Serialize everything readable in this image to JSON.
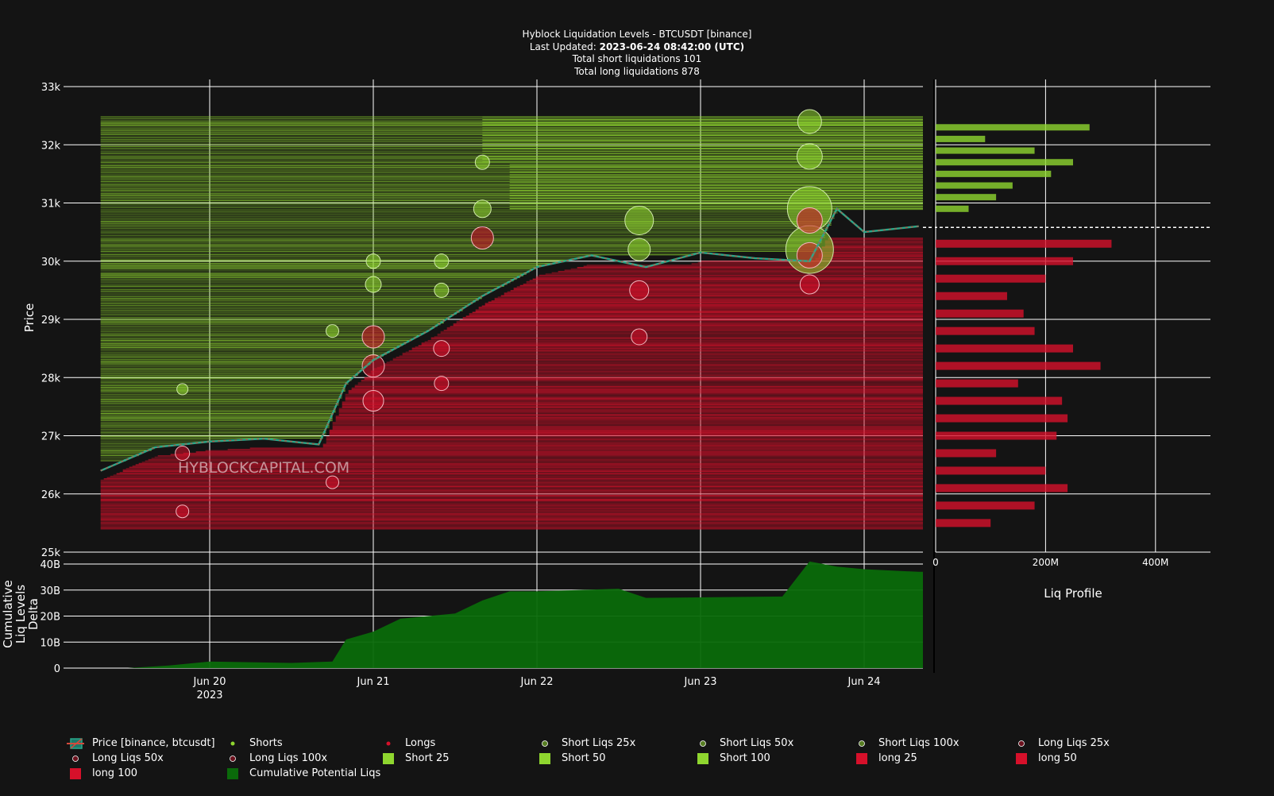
{
  "header": {
    "title": "Hyblock Liquidation Levels - BTCUSDT [binance]",
    "updated_prefix": "Last Updated: ",
    "updated_value": "2023-06-24 08:42:00 (UTC)",
    "shorts_line": "Total short liquidations 101",
    "longs_line": "Total long liquidations 878"
  },
  "watermark": "HYBLOCKCAPITAL.COM",
  "colors": {
    "background": "#141414",
    "short": "#8fd62f",
    "long": "#d6102a",
    "cumulative": "#0a6a0a",
    "price_up": "#2aa889",
    "price_down": "#d34a3c"
  },
  "chart_data": [
    {
      "type": "scatter",
      "panel": "main",
      "ylabel": "Price",
      "ylim": [
        25000,
        33000
      ],
      "yticks": [
        "25k",
        "26k",
        "27k",
        "28k",
        "29k",
        "30k",
        "31k",
        "32k",
        "33k"
      ],
      "xticks": [
        "Jun 20",
        "Jun 21",
        "Jun 22",
        "Jun 23",
        "Jun 24"
      ],
      "xtick_sub": "2023",
      "current_price": 30580,
      "price_series": {
        "name": "Price [binance, btcusdt]",
        "x": [
          "2023-06-19 08:00",
          "2023-06-19 16:00",
          "2023-06-20 00:00",
          "2023-06-20 08:00",
          "2023-06-20 16:00",
          "2023-06-20 20:00",
          "2023-06-21 00:00",
          "2023-06-21 08:00",
          "2023-06-21 16:00",
          "2023-06-22 00:00",
          "2023-06-22 08:00",
          "2023-06-22 16:00",
          "2023-06-23 00:00",
          "2023-06-23 08:00",
          "2023-06-23 16:00",
          "2023-06-23 20:00",
          "2023-06-24 00:00",
          "2023-06-24 08:00"
        ],
        "y": [
          26400,
          26800,
          26900,
          26950,
          26850,
          27900,
          28300,
          28800,
          29400,
          29900,
          30100,
          29900,
          30150,
          30050,
          30000,
          30900,
          30500,
          30600
        ]
      },
      "short_levels": {
        "name": "Short Liqs",
        "price_range": [
          25400,
          32500
        ],
        "band_center": [
          26500,
          27300,
          28100,
          29000,
          30200,
          31200,
          31800
        ]
      },
      "long_levels": {
        "name": "Long Liqs",
        "price_range": [
          25400,
          30400
        ]
      },
      "short_bubbles": [
        {
          "x": "2023-06-19 20:00",
          "y": 27800,
          "r": 7
        },
        {
          "x": "2023-06-20 18:00",
          "y": 28800,
          "r": 8
        },
        {
          "x": "2023-06-21 00:00",
          "y": 29600,
          "r": 10
        },
        {
          "x": "2023-06-21 00:00",
          "y": 30000,
          "r": 9
        },
        {
          "x": "2023-06-21 10:00",
          "y": 30000,
          "r": 9
        },
        {
          "x": "2023-06-21 10:00",
          "y": 29500,
          "r": 9
        },
        {
          "x": "2023-06-21 16:00",
          "y": 31700,
          "r": 9
        },
        {
          "x": "2023-06-21 16:00",
          "y": 30900,
          "r": 11
        },
        {
          "x": "2023-06-22 15:00",
          "y": 30700,
          "r": 18
        },
        {
          "x": "2023-06-22 15:00",
          "y": 30200,
          "r": 14
        },
        {
          "x": "2023-06-23 16:00",
          "y": 32400,
          "r": 15
        },
        {
          "x": "2023-06-23 16:00",
          "y": 31800,
          "r": 16
        },
        {
          "x": "2023-06-23 16:00",
          "y": 30900,
          "r": 28
        },
        {
          "x": "2023-06-23 16:00",
          "y": 30200,
          "r": 30
        }
      ],
      "long_bubbles": [
        {
          "x": "2023-06-19 20:00",
          "y": 26700,
          "r": 9
        },
        {
          "x": "2023-06-19 20:00",
          "y": 25700,
          "r": 8
        },
        {
          "x": "2023-06-20 18:00",
          "y": 26200,
          "r": 8
        },
        {
          "x": "2023-06-21 00:00",
          "y": 28700,
          "r": 14
        },
        {
          "x": "2023-06-21 00:00",
          "y": 28200,
          "r": 14
        },
        {
          "x": "2023-06-21 00:00",
          "y": 27600,
          "r": 13
        },
        {
          "x": "2023-06-21 10:00",
          "y": 28500,
          "r": 10
        },
        {
          "x": "2023-06-21 10:00",
          "y": 27900,
          "r": 9
        },
        {
          "x": "2023-06-21 16:00",
          "y": 30400,
          "r": 14
        },
        {
          "x": "2023-06-22 15:00",
          "y": 29500,
          "r": 12
        },
        {
          "x": "2023-06-22 15:00",
          "y": 28700,
          "r": 10
        },
        {
          "x": "2023-06-23 16:00",
          "y": 30700,
          "r": 16
        },
        {
          "x": "2023-06-23 16:00",
          "y": 30100,
          "r": 16
        },
        {
          "x": "2023-06-23 16:00",
          "y": 29600,
          "r": 12
        }
      ]
    },
    {
      "type": "area",
      "panel": "cumulative",
      "name": "Cumulative Potential Liqs",
      "ylabel": "Cumulative Liq Levels Delta",
      "ylim": [
        0,
        40
      ],
      "yticks": [
        "0",
        "10B",
        "20B",
        "30B",
        "40B"
      ],
      "x": [
        "2023-06-19 06:00",
        "2023-06-19 12:00",
        "2023-06-19 18:00",
        "2023-06-20 00:00",
        "2023-06-20 12:00",
        "2023-06-20 18:00",
        "2023-06-20 20:00",
        "2023-06-21 00:00",
        "2023-06-21 04:00",
        "2023-06-21 12:00",
        "2023-06-21 16:00",
        "2023-06-21 20:00",
        "2023-06-22 00:00",
        "2023-06-22 12:00",
        "2023-06-22 16:00",
        "2023-06-23 12:00",
        "2023-06-23 16:00",
        "2023-06-23 20:00",
        "2023-06-24 00:00",
        "2023-06-24 08:00"
      ],
      "y": [
        0,
        0,
        1,
        2.5,
        2,
        2.5,
        11,
        14,
        19,
        21,
        26,
        29.5,
        29.5,
        30.5,
        27,
        27.5,
        41,
        39,
        38,
        37
      ]
    },
    {
      "type": "bar",
      "panel": "profile",
      "title": "Liq Profile",
      "xticks": [
        "0",
        "200M",
        "400M"
      ],
      "xlim": [
        0,
        500
      ],
      "short_bars": {
        "price": [
          30900,
          31100,
          31300,
          31500,
          31700,
          31900,
          32100,
          32300
        ],
        "values": [
          60,
          110,
          140,
          210,
          250,
          180,
          90,
          280
        ]
      },
      "long_bars": {
        "price": [
          25500,
          25800,
          26100,
          26400,
          26700,
          27000,
          27300,
          27600,
          27900,
          28200,
          28500,
          28800,
          29100,
          29400,
          29700,
          30000,
          30300
        ],
        "values": [
          100,
          180,
          240,
          200,
          110,
          220,
          240,
          230,
          150,
          300,
          250,
          180,
          160,
          130,
          200,
          250,
          320
        ]
      }
    }
  ],
  "legend": [
    {
      "label": "Price [binance, btcusdt]",
      "swatch": "price"
    },
    {
      "label": "Shorts",
      "swatch": "short-dot"
    },
    {
      "label": "Longs",
      "swatch": "long-dot"
    },
    {
      "label": "Short Liqs 25x",
      "swatch": "short-ring"
    },
    {
      "label": "Short Liqs 50x",
      "swatch": "short-ring"
    },
    {
      "label": "Short Liqs 100x",
      "swatch": "short-ring"
    },
    {
      "label": "Long Liqs 25x",
      "swatch": "long-ring"
    },
    {
      "label": "Long Liqs 50x",
      "swatch": "long-ring"
    },
    {
      "label": "Long Liqs 100x",
      "swatch": "long-ring"
    },
    {
      "label": "Short 25",
      "swatch": "short-square"
    },
    {
      "label": "Short 50",
      "swatch": "short-square"
    },
    {
      "label": "Short 100",
      "swatch": "short-square"
    },
    {
      "label": "long 25",
      "swatch": "long-square"
    },
    {
      "label": "long 50",
      "swatch": "long-square"
    },
    {
      "label": "long 100",
      "swatch": "long-square"
    },
    {
      "label": "Cumulative Potential Liqs",
      "swatch": "cum-square"
    }
  ]
}
